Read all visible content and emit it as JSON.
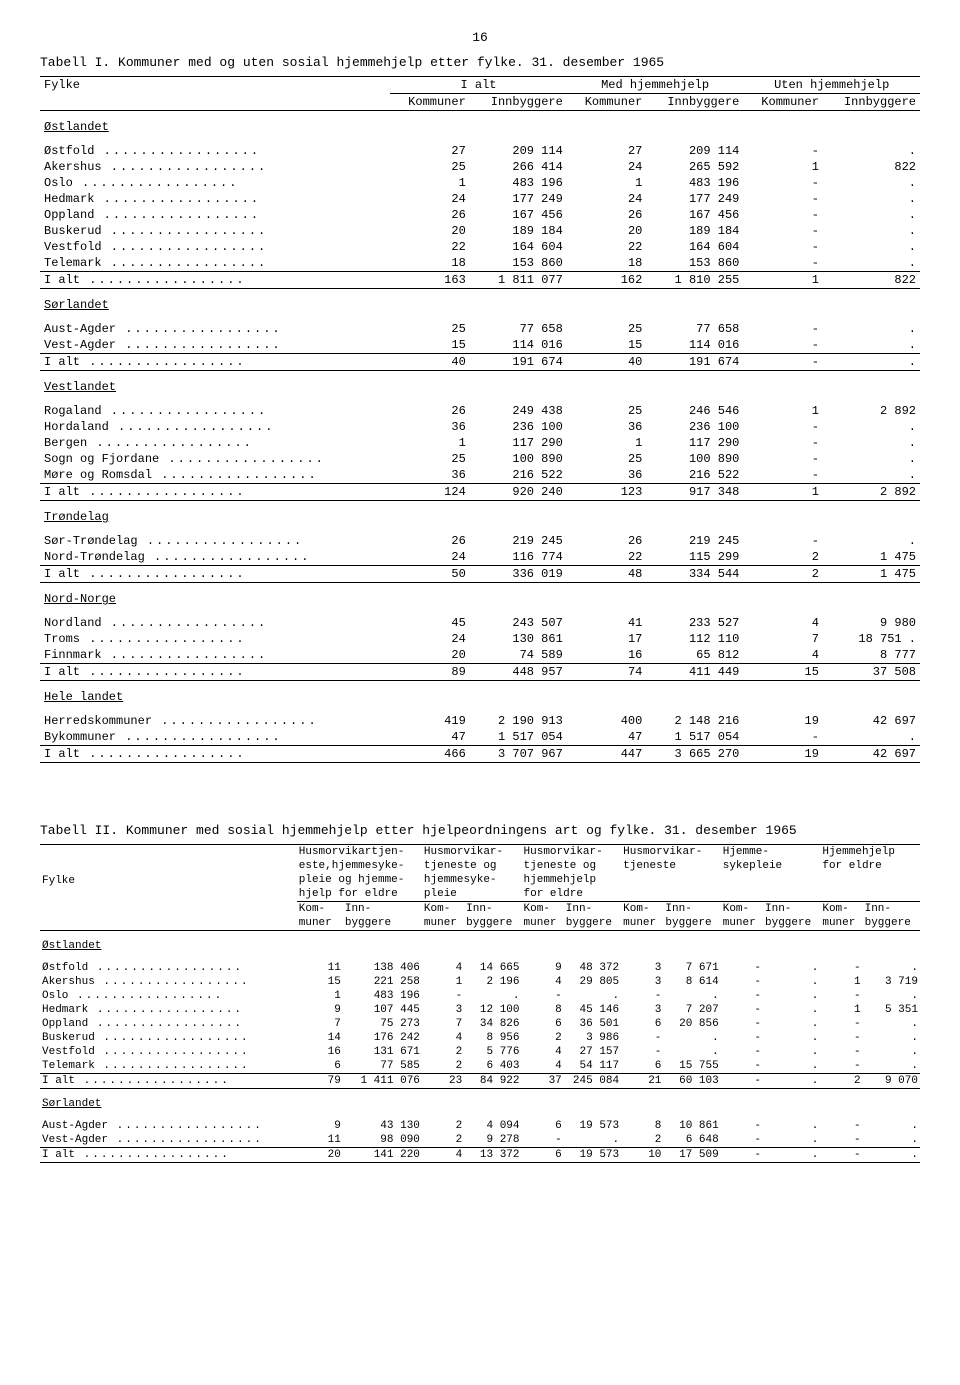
{
  "page_number": "16",
  "table1": {
    "caption": "Tabell I.  Kommuner med og uten sosial hjemmehjelp etter fylke.  31. desember 1965",
    "header": {
      "col_fylke": "Fylke",
      "group1": "I alt",
      "group2": "Med hjemmehjelp",
      "group3": "Uten hjemmehjelp",
      "sub_kom": "Kommuner",
      "sub_inn": "Innbyggere"
    },
    "rows": [
      {
        "type": "section",
        "label": "Østlandet"
      },
      {
        "label": "Østfold",
        "k1": "27",
        "i1": "209 114",
        "k2": "27",
        "i2": "209 114",
        "k3": "-",
        "i3": "."
      },
      {
        "label": "Akershus",
        "k1": "25",
        "i1": "266 414",
        "k2": "24",
        "i2": "265 592",
        "k3": "1",
        "i3": "822"
      },
      {
        "label": "Oslo",
        "k1": "1",
        "i1": "483 196",
        "k2": "1",
        "i2": "483 196",
        "k3": "-",
        "i3": "."
      },
      {
        "label": "Hedmark",
        "k1": "24",
        "i1": "177 249",
        "k2": "24",
        "i2": "177 249",
        "k3": "-",
        "i3": "."
      },
      {
        "label": "Oppland",
        "k1": "26",
        "i1": "167 456",
        "k2": "26",
        "i2": "167 456",
        "k3": "-",
        "i3": "."
      },
      {
        "label": "Buskerud",
        "k1": "20",
        "i1": "189 184",
        "k2": "20",
        "i2": "189 184",
        "k3": "-",
        "i3": "."
      },
      {
        "label": "Vestfold",
        "k1": "22",
        "i1": "164 604",
        "k2": "22",
        "i2": "164 604",
        "k3": "-",
        "i3": "."
      },
      {
        "label": "Telemark",
        "k1": "18",
        "i1": "153 860",
        "k2": "18",
        "i2": "153 860",
        "k3": "-",
        "i3": ".",
        "rule": "bottom"
      },
      {
        "label": "I alt",
        "k1": "163",
        "i1": "1 811 077",
        "k2": "162",
        "i2": "1 810 255",
        "k3": "1",
        "i3": "822",
        "rule": "bottom"
      },
      {
        "type": "section",
        "label": "Sørlandet"
      },
      {
        "label": "Aust-Agder",
        "k1": "25",
        "i1": "77 658",
        "k2": "25",
        "i2": "77 658",
        "k3": "-",
        "i3": "."
      },
      {
        "label": "Vest-Agder",
        "k1": "15",
        "i1": "114 016",
        "k2": "15",
        "i2": "114 016",
        "k3": "-",
        "i3": ".",
        "rule": "bottom"
      },
      {
        "label": "I alt",
        "k1": "40",
        "i1": "191 674",
        "k2": "40",
        "i2": "191 674",
        "k3": "-",
        "i3": ".",
        "rule": "bottom"
      },
      {
        "type": "section",
        "label": "Vestlandet"
      },
      {
        "label": "Rogaland",
        "k1": "26",
        "i1": "249 438",
        "k2": "25",
        "i2": "246 546",
        "k3": "1",
        "i3": "2 892"
      },
      {
        "label": "Hordaland",
        "k1": "36",
        "i1": "236 100",
        "k2": "36",
        "i2": "236 100",
        "k3": "-",
        "i3": "."
      },
      {
        "label": "Bergen",
        "k1": "1",
        "i1": "117 290",
        "k2": "1",
        "i2": "117 290",
        "k3": "-",
        "i3": "."
      },
      {
        "label": "Sogn og Fjordane",
        "k1": "25",
        "i1": "100 890",
        "k2": "25",
        "i2": "100 890",
        "k3": "-",
        "i3": "."
      },
      {
        "label": "Møre og Romsdal",
        "k1": "36",
        "i1": "216 522",
        "k2": "36",
        "i2": "216 522",
        "k3": "-",
        "i3": ".",
        "rule": "bottom"
      },
      {
        "label": "I alt",
        "k1": "124",
        "i1": "920 240",
        "k2": "123",
        "i2": "917 348",
        "k3": "1",
        "i3": "2 892",
        "rule": "bottom"
      },
      {
        "type": "section",
        "label": "Trøndelag"
      },
      {
        "label": "Sør-Trøndelag",
        "k1": "26",
        "i1": "219 245",
        "k2": "26",
        "i2": "219 245",
        "k3": "-",
        "i3": "."
      },
      {
        "label": "Nord-Trøndelag",
        "k1": "24",
        "i1": "116 774",
        "k2": "22",
        "i2": "115 299",
        "k3": "2",
        "i3": "1 475",
        "rule": "bottom"
      },
      {
        "label": "I alt",
        "k1": "50",
        "i1": "336 019",
        "k2": "48",
        "i2": "334 544",
        "k3": "2",
        "i3": "1 475",
        "rule": "bottom"
      },
      {
        "type": "section",
        "label": "Nord-Norge"
      },
      {
        "label": "Nordland",
        "k1": "45",
        "i1": "243 507",
        "k2": "41",
        "i2": "233 527",
        "k3": "4",
        "i3": "9 980"
      },
      {
        "label": "Troms",
        "k1": "24",
        "i1": "130 861",
        "k2": "17",
        "i2": "112 110",
        "k3": "7",
        "i3": "18 751 ."
      },
      {
        "label": "Finnmark",
        "k1": "20",
        "i1": "74 589",
        "k2": "16",
        "i2": "65 812",
        "k3": "4",
        "i3": "8 777",
        "rule": "bottom"
      },
      {
        "label": "I alt",
        "k1": "89",
        "i1": "448 957",
        "k2": "74",
        "i2": "411 449",
        "k3": "15",
        "i3": "37 508",
        "rule": "bottom"
      },
      {
        "type": "section",
        "label": "Hele landet"
      },
      {
        "label": "Herredskommuner",
        "k1": "419",
        "i1": "2 190 913",
        "k2": "400",
        "i2": "2 148 216",
        "k3": "19",
        "i3": "42 697"
      },
      {
        "label": "Bykommuner",
        "k1": "47",
        "i1": "1 517 054",
        "k2": "47",
        "i2": "1 517 054",
        "k3": "-",
        "i3": ".",
        "rule": "bottom"
      },
      {
        "label": "I alt",
        "k1": "466",
        "i1": "3 707 967",
        "k2": "447",
        "i2": "3 665 270",
        "k3": "19",
        "i3": "42 697",
        "rule": "bottom"
      }
    ]
  },
  "table2": {
    "caption": "Tabell II.  Kommuner med sosial hjemmehjelp etter hjelpeordningens art og fylke.  31. desember 1965",
    "header": {
      "col_fylke": "Fylke",
      "g1a": "Husmorvikartjen-",
      "g1b": "este,hjemmesyke-",
      "g1c": "pleie og hjemme-",
      "g1d": "hjelp for eldre",
      "g2a": "Husmorvikar-",
      "g2b": "tjeneste og",
      "g2c": "hjemmesyke-",
      "g2d": "pleie",
      "g3a": "Husmorvikar-",
      "g3b": "tjeneste og",
      "g3c": "hjemmehjelp",
      "g3d": "for eldre",
      "g4a": "Husmorvikar-",
      "g4b": "tjeneste",
      "g5a": "Hjemme-",
      "g5b": "sykepleie",
      "g6a": "Hjemmehjelp",
      "g6b": "for eldre",
      "sub_kom": "Kom-",
      "sub_kom2": "muner",
      "sub_inn": "Inn-",
      "sub_inn2": "byggere"
    },
    "rows": [
      {
        "type": "section",
        "label": "Østlandet"
      },
      {
        "label": "Østfold",
        "c": [
          "11",
          "138 406",
          "4",
          "14 665",
          "9",
          "48 372",
          "3",
          "7 671",
          "-",
          ".",
          "-",
          "."
        ]
      },
      {
        "label": "Akershus",
        "c": [
          "15",
          "221 258",
          "1",
          "2 196",
          "4",
          "29 805",
          "3",
          "8 614",
          "-",
          ".",
          "1",
          "3 719"
        ]
      },
      {
        "label": "Oslo",
        "c": [
          "1",
          "483 196",
          "-",
          ".",
          "-",
          ".",
          "-",
          ".",
          "-",
          ".",
          "-",
          "."
        ]
      },
      {
        "label": "Hedmark",
        "c": [
          "9",
          "107 445",
          "3",
          "12 100",
          "8",
          "45 146",
          "3",
          "7 207",
          "-",
          ".",
          "1",
          "5 351"
        ]
      },
      {
        "label": "Oppland",
        "c": [
          "7",
          "75 273",
          "7",
          "34 826",
          "6",
          "36 501",
          "6",
          "20 856",
          "-",
          ".",
          "-",
          "."
        ]
      },
      {
        "label": "Buskerud",
        "c": [
          "14",
          "176 242",
          "4",
          "8 956",
          "2",
          "3 986",
          "-",
          ".",
          "-",
          ".",
          "-",
          "."
        ]
      },
      {
        "label": "Vestfold",
        "c": [
          "16",
          "131 671",
          "2",
          "5 776",
          "4",
          "27 157",
          "-",
          ".",
          "-",
          ".",
          "-",
          "."
        ]
      },
      {
        "label": "Telemark",
        "c": [
          "6",
          "77 585",
          "2",
          "6 403",
          "4",
          "54 117",
          "6",
          "15 755",
          "-",
          ".",
          "-",
          "."
        ],
        "rule": "bottom"
      },
      {
        "label": "I alt",
        "c": [
          "79",
          "1 411 076",
          "23",
          "84 922",
          "37",
          "245 084",
          "21",
          "60 103",
          "-",
          ".",
          "2",
          "9 070"
        ],
        "rule": "bottom"
      },
      {
        "type": "section",
        "label": "Sørlandet"
      },
      {
        "label": "Aust-Agder",
        "c": [
          "9",
          "43 130",
          "2",
          "4 094",
          "6",
          "19 573",
          "8",
          "10 861",
          "-",
          ".",
          "-",
          "."
        ]
      },
      {
        "label": "Vest-Agder",
        "c": [
          "11",
          "98 090",
          "2",
          "9 278",
          "-",
          ".",
          "2",
          "6 648",
          "-",
          ".",
          "-",
          "."
        ],
        "rule": "bottom"
      },
      {
        "label": "I alt",
        "c": [
          "20",
          "141 220",
          "4",
          "13 372",
          "6",
          "19 573",
          "10",
          "17 509",
          "-",
          ".",
          "-",
          "."
        ],
        "rule": "bottom"
      }
    ]
  }
}
